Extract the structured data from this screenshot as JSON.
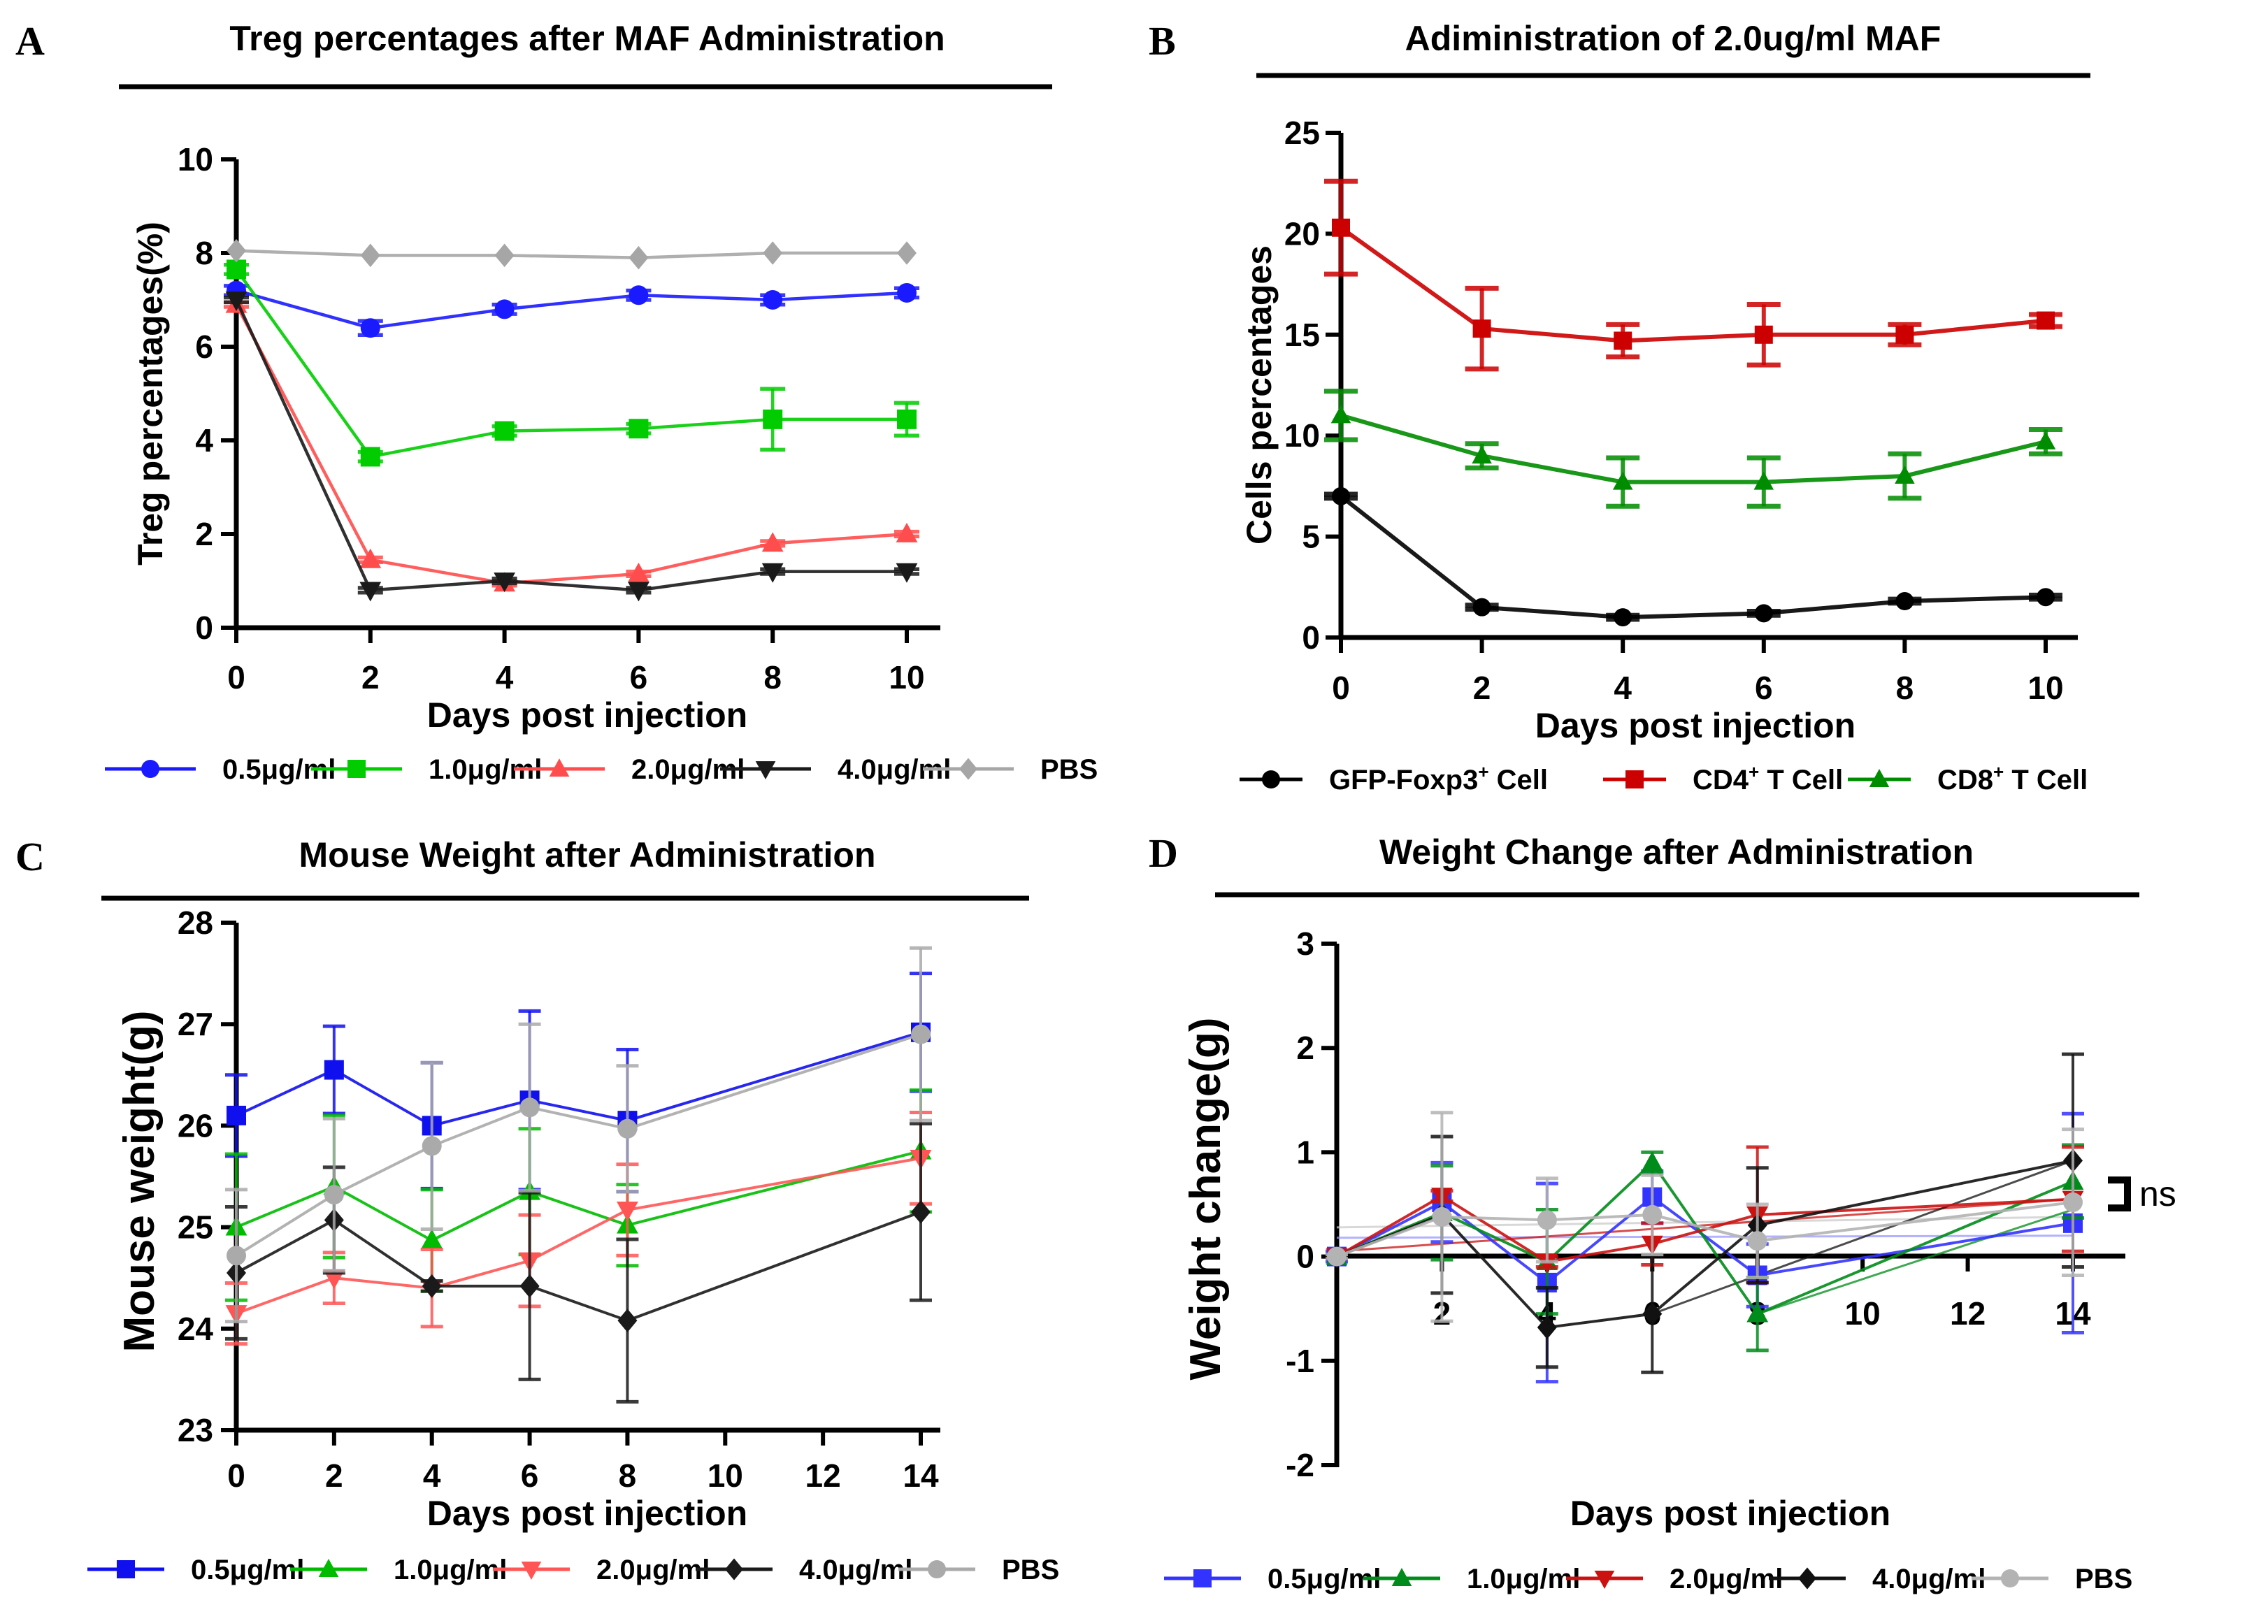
{
  "figure": {
    "panels": [
      {
        "letter": "A"
      },
      {
        "letter": "B"
      },
      {
        "letter": "C"
      },
      {
        "letter": "D"
      }
    ]
  },
  "chart_data": [
    {
      "id": "A",
      "type": "line",
      "title": "Treg percentages after MAF Administration",
      "xlabel": "Days post injection",
      "ylabel": "Treg percentages(%)",
      "x": [
        0,
        2,
        4,
        6,
        8,
        10
      ],
      "xticks": [
        0,
        2,
        4,
        6,
        8,
        10
      ],
      "yticks": [
        0,
        2,
        4,
        6,
        8,
        10
      ],
      "xlim": [
        0,
        10
      ],
      "ylim": [
        0,
        10
      ],
      "grid": false,
      "legend_position": "bottom",
      "series": [
        {
          "name": "0.5μg/ml",
          "color": "#1a1aff",
          "marker": "circle",
          "values": [
            7.2,
            6.4,
            6.8,
            7.1,
            7.0,
            7.15
          ],
          "err": [
            0.1,
            0.15,
            0.1,
            0.1,
            0.1,
            0.1
          ]
        },
        {
          "name": "1.0μg/ml",
          "color": "#00cc00",
          "marker": "square",
          "values": [
            7.65,
            3.65,
            4.2,
            4.25,
            4.45,
            4.45
          ],
          "err": [
            0.1,
            0.1,
            0.1,
            0.1,
            0.65,
            0.35
          ]
        },
        {
          "name": "2.0μg/ml",
          "color": "#ff4d4d",
          "marker": "triangle-up",
          "values": [
            6.9,
            1.45,
            0.95,
            1.15,
            1.8,
            2.0
          ],
          "err": [
            0.05,
            0.05,
            0.05,
            0.05,
            0.05,
            0.05
          ]
        },
        {
          "name": "4.0μg/ml",
          "color": "#1a1a1a",
          "marker": "triangle-down",
          "values": [
            7.0,
            0.8,
            1.0,
            0.8,
            1.2,
            1.2
          ],
          "err": [
            0.05,
            0.05,
            0.05,
            0.05,
            0.05,
            0.05
          ]
        },
        {
          "name": "PBS",
          "color": "#a6a6a6",
          "marker": "diamond",
          "values": [
            8.05,
            7.95,
            7.95,
            7.9,
            8.0,
            8.0
          ],
          "err": [
            0.02,
            0.02,
            0.02,
            0.02,
            0.02,
            0.02
          ]
        }
      ]
    },
    {
      "id": "B",
      "type": "line",
      "title": "Adiministration of 2.0ug/ml MAF",
      "xlabel": "Days post injection",
      "ylabel": "Cells percentages",
      "x": [
        0,
        2,
        4,
        6,
        8,
        10
      ],
      "xticks": [
        0,
        2,
        4,
        6,
        8,
        10
      ],
      "yticks": [
        0,
        5,
        10,
        15,
        20,
        25
      ],
      "xlim": [
        0,
        10
      ],
      "ylim": [
        0,
        25
      ],
      "grid": false,
      "legend_position": "bottom",
      "series": [
        {
          "name": "GFP-Foxp3",
          "sup": "+",
          "suffix": " Cell",
          "color": "#000000",
          "marker": "circle",
          "values": [
            7.0,
            1.5,
            1.0,
            1.2,
            1.8,
            2.0
          ],
          "err": [
            0.1,
            0.1,
            0.1,
            0.1,
            0.1,
            0.1
          ]
        },
        {
          "name": "CD4",
          "sup": "+",
          "suffix": " T Cell",
          "color": "#cc0000",
          "marker": "square",
          "values": [
            20.3,
            15.3,
            14.7,
            15.0,
            15.0,
            15.7
          ],
          "err": [
            2.3,
            2.0,
            0.8,
            1.5,
            0.5,
            0.3
          ]
        },
        {
          "name": "CD8",
          "sup": "+",
          "suffix": " T Cell",
          "color": "#008c00",
          "marker": "triangle-up",
          "values": [
            11.0,
            9.0,
            7.7,
            7.7,
            8.0,
            9.7
          ],
          "err": [
            1.2,
            0.6,
            1.2,
            1.2,
            1.1,
            0.6
          ]
        }
      ]
    },
    {
      "id": "C",
      "type": "line",
      "title": "Mouse Weight after Administration",
      "xlabel": "Days post injection",
      "ylabel": "Mouse weight(g)",
      "x": [
        0,
        2,
        4,
        6,
        8,
        14
      ],
      "xticks": [
        0,
        2,
        4,
        6,
        8,
        10,
        12,
        14
      ],
      "yticks": [
        23,
        24,
        25,
        26,
        27,
        28
      ],
      "xlim": [
        0,
        14
      ],
      "ylim": [
        23,
        28
      ],
      "grid": false,
      "legend_position": "bottom",
      "series": [
        {
          "name": "0.5μg/ml",
          "color": "#1010ee",
          "marker": "square",
          "values": [
            26.1,
            26.55,
            26.0,
            26.25,
            26.05,
            26.92
          ],
          "err": [
            0.4,
            0.43,
            0.62,
            0.88,
            0.7,
            0.58
          ]
        },
        {
          "name": "1.0μg/ml",
          "color": "#00bb00",
          "marker": "triangle-up",
          "values": [
            25.0,
            25.4,
            24.87,
            25.35,
            25.02,
            25.75
          ],
          "err": [
            0.72,
            0.7,
            0.5,
            0.62,
            0.4,
            0.6
          ]
        },
        {
          "name": "2.0μg/ml",
          "color": "#ff5555",
          "marker": "triangle-down",
          "values": [
            24.15,
            24.5,
            24.4,
            24.67,
            25.17,
            25.68
          ],
          "err": [
            0.3,
            0.25,
            0.38,
            0.45,
            0.45,
            0.45
          ]
        },
        {
          "name": "4.0μg/ml",
          "color": "#1a1a1a",
          "marker": "diamond",
          "values": [
            24.55,
            25.07,
            24.42,
            24.42,
            24.08,
            25.15
          ],
          "err": [
            0.65,
            0.52,
            0.05,
            0.92,
            0.8,
            0.87
          ]
        },
        {
          "name": "PBS",
          "color": "#aaaaaa",
          "marker": "circle",
          "values": [
            24.72,
            25.32,
            25.8,
            26.18,
            25.97,
            26.9
          ],
          "err": [
            0.65,
            0.75,
            0.82,
            0.82,
            0.62,
            0.85
          ]
        }
      ]
    },
    {
      "id": "D",
      "type": "line",
      "title": "Weight Change after Administration",
      "xlabel": "Days post injection",
      "ylabel": "Weight change(g)",
      "x": [
        0,
        2,
        4,
        6,
        8,
        14
      ],
      "xticks": [
        2,
        4,
        6,
        8,
        10,
        12,
        14
      ],
      "yticks": [
        -2,
        -1,
        0,
        1,
        2,
        3
      ],
      "xlim": [
        0,
        15
      ],
      "ylim": [
        -2,
        3
      ],
      "grid": false,
      "legend_position": "bottom",
      "annotations": [
        {
          "text": "ns",
          "at_x": 14,
          "at_y": 0.6,
          "bracket": true
        }
      ],
      "series": [
        {
          "name": "0.5μg/ml",
          "color": "#3333ff",
          "marker": "square",
          "values": [
            0.0,
            0.52,
            -0.25,
            0.57,
            -0.18,
            0.32
          ],
          "err": [
            0.05,
            0.38,
            0.95,
            0.25,
            0.3,
            1.05
          ]
        },
        {
          "name": "1.0μg/ml",
          "color": "#008c1a",
          "marker": "triangle-up",
          "values": [
            0.0,
            0.42,
            -0.05,
            0.9,
            -0.55,
            0.72
          ],
          "err": [
            0.02,
            0.45,
            0.5,
            0.1,
            0.35,
            0.35
          ]
        },
        {
          "name": "2.0μg/ml",
          "color": "#cc1111",
          "marker": "triangle-down",
          "values": [
            0.0,
            0.58,
            -0.05,
            0.12,
            0.4,
            0.55
          ],
          "err": [
            0.02,
            0.05,
            0.05,
            0.2,
            0.65,
            0.5
          ]
        },
        {
          "name": "4.0μg/ml",
          "color": "#111111",
          "marker": "diamond",
          "values": [
            0.0,
            0.4,
            -0.68,
            -0.55,
            0.3,
            0.92
          ],
          "err": [
            0.02,
            0.75,
            0.38,
            0.56,
            0.55,
            1.02
          ]
        },
        {
          "name": "PBS",
          "color": "#b3b3b3",
          "marker": "circle",
          "values": [
            0.0,
            0.38,
            0.35,
            0.4,
            0.15,
            0.52
          ],
          "err": [
            0.02,
            1.0,
            0.4,
            0.38,
            0.35,
            0.7
          ]
        }
      ],
      "faint_reference_lines": [
        {
          "color": "#cccccc",
          "from": [
            0,
            0.28
          ],
          "to": [
            14,
            0.38
          ]
        },
        {
          "color": "#9999ff",
          "from": [
            0,
            0.18
          ],
          "to": [
            14,
            0.2
          ]
        },
        {
          "color": "#cc1111",
          "from": [
            0,
            0.05
          ],
          "to": [
            14,
            0.55
          ]
        },
        {
          "color": "#111111",
          "from": [
            6,
            -0.55
          ],
          "to": [
            14,
            0.92
          ]
        },
        {
          "color": "#008c1a",
          "from": [
            8,
            -0.55
          ],
          "to": [
            14,
            0.45
          ]
        }
      ]
    }
  ]
}
